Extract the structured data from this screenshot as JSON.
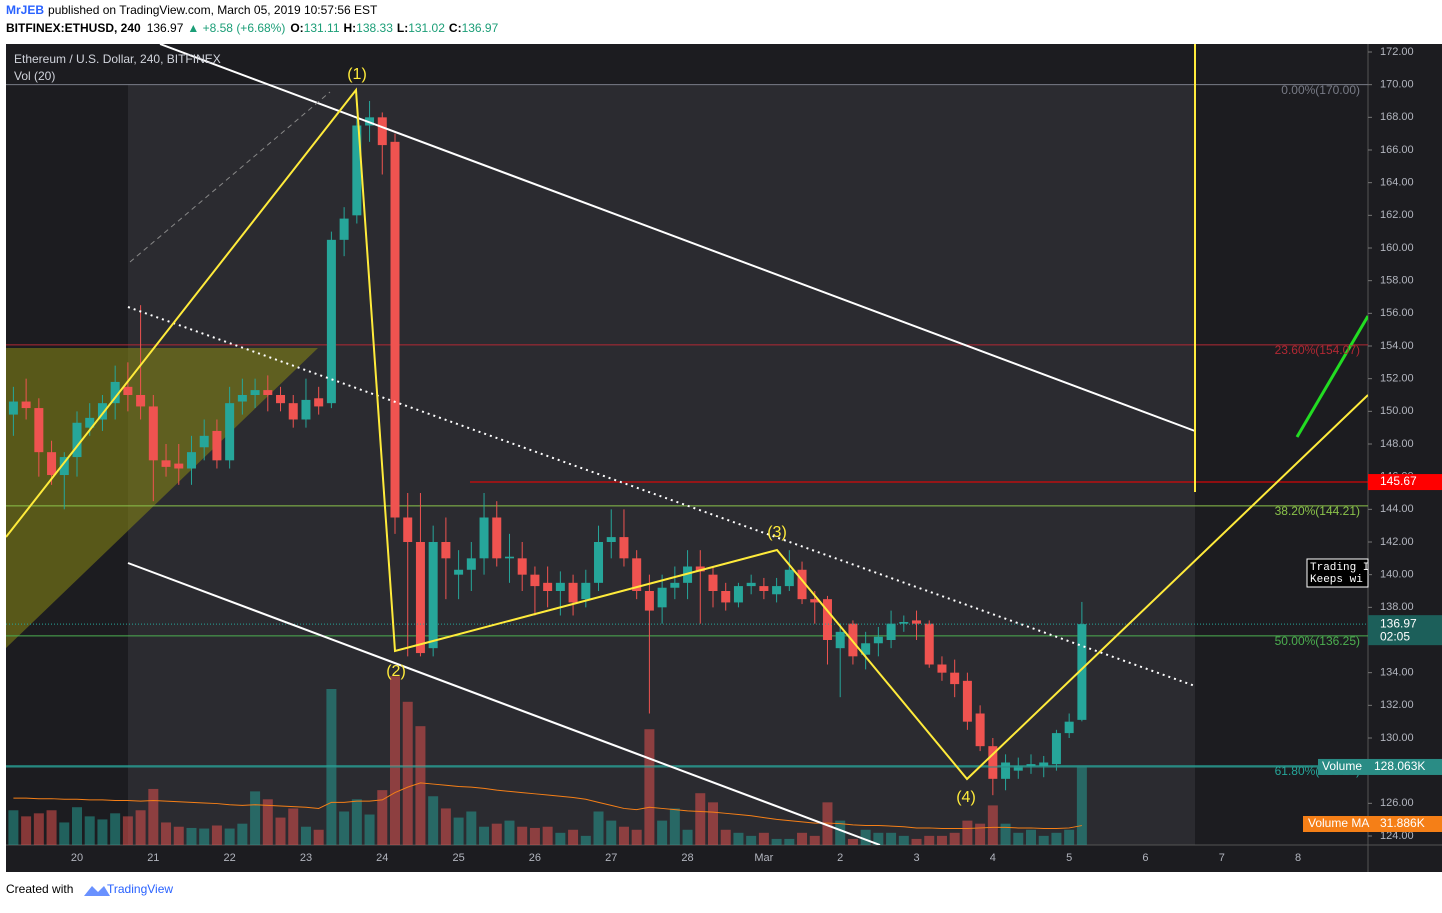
{
  "header": {
    "author": "MrJEB",
    "published": "published on TradingView.com, March 05, 2019 10:57:56 EST",
    "symbol": "BITFINEX:ETHUSD, 240",
    "last": "136.97",
    "change": "▲ +8.58 (+6.68%)",
    "o_label": "O:",
    "o": "131.11",
    "h_label": "H:",
    "h": "138.33",
    "l_label": "L:",
    "l": "131.02",
    "c_label": "C:",
    "c": "136.97"
  },
  "chart_data": {
    "type": "candlestick",
    "title": "Ethereum / U.S. Dollar, 240, BITFINEX",
    "subtitle": "Vol (20)",
    "up_color": "#26a69a",
    "down_color": "#ef5350",
    "categories": [
      null,
      null,
      null,
      null,
      null,
      "20",
      null,
      null,
      null,
      null,
      null,
      "21",
      null,
      null,
      null,
      null,
      null,
      "22",
      null,
      null,
      null,
      null,
      null,
      "23",
      null,
      null,
      null,
      null,
      null,
      "24",
      null,
      null,
      null,
      null,
      null,
      "25",
      null,
      null,
      null,
      null,
      null,
      "26",
      null,
      null,
      null,
      null,
      null,
      "27",
      null,
      null,
      null,
      null,
      null,
      "28",
      null,
      null,
      null,
      null,
      null,
      "Mar",
      null,
      null,
      null,
      null,
      null,
      "2",
      null,
      null,
      null,
      null,
      null,
      "3",
      null,
      null,
      null,
      null,
      null,
      "4",
      null,
      null,
      null,
      null,
      null,
      "5",
      null,
      null,
      null,
      null,
      null,
      "6",
      null,
      null,
      null,
      null,
      null,
      "7",
      null,
      null,
      null,
      null,
      null,
      "8"
    ],
    "open": [
      149.8,
      150.6,
      150.2,
      147.5,
      146.1,
      147.2,
      149,
      149.5,
      150.5,
      151.5,
      151,
      150.3,
      147,
      146.8,
      146.5,
      147.8,
      148.8,
      147,
      150.6,
      151,
      151.3,
      151,
      150.5,
      149.5,
      150.8,
      150.5,
      160.5,
      162,
      167.5,
      168,
      166.5,
      143.5,
      142,
      135.5,
      142,
      140,
      140.3,
      141,
      143.5,
      141,
      141,
      140,
      139.5,
      139,
      139.5,
      138.5,
      139.5,
      142,
      142.3,
      141,
      139,
      138,
      139.2,
      139.5,
      140.5,
      140,
      139,
      138.3,
      139.3,
      139.3,
      138.8,
      139.3,
      140.3,
      138.5,
      138.5,
      135.5,
      137,
      135.1,
      135.8,
      136,
      137,
      137.2,
      137,
      134.5,
      134,
      133.5,
      131.5,
      129.5,
      127.5,
      128,
      128.3,
      128.3,
      128.4,
      130.3,
      131.11,
      null,
      null,
      null,
      null,
      null,
      null,
      null,
      null,
      null,
      null,
      null,
      null,
      null,
      null,
      null,
      null,
      null
    ],
    "high": [
      151.5,
      152,
      150.8,
      148.2,
      147.5,
      150,
      150.5,
      151,
      152.8,
      153,
      156.5,
      151,
      148,
      148,
      148.5,
      149.5,
      149.5,
      151.5,
      152,
      152,
      152.2,
      151.5,
      151,
      152,
      151.5,
      161,
      162.5,
      168,
      169,
      168.3,
      167,
      145,
      145,
      143,
      143.5,
      141.5,
      142,
      145,
      144.5,
      142.5,
      142,
      140.5,
      140.5,
      140.2,
      140,
      140.3,
      143,
      144,
      144,
      141.5,
      140,
      140,
      140.5,
      141.5,
      141.5,
      140.5,
      139.5,
      139.5,
      140,
      139.8,
      139.8,
      141.5,
      140.8,
      139,
      138.7,
      137,
      137.2,
      136.5,
      136.8,
      137.8,
      137.5,
      137.8,
      137.2,
      135,
      134.8,
      134,
      132,
      130,
      129,
      128.8,
      129,
      128.9,
      130.5,
      131.5,
      138.33,
      null,
      null,
      null,
      null,
      null,
      null,
      null,
      null,
      null,
      null,
      null,
      null,
      null,
      null,
      null,
      null,
      null
    ],
    "low": [
      148.5,
      149.5,
      146,
      145.5,
      144,
      146,
      148.5,
      148.8,
      149.5,
      150,
      149.5,
      144.5,
      146,
      145.5,
      145.5,
      147,
      146.5,
      146.5,
      149.8,
      150.2,
      150,
      150,
      149,
      149,
      149.8,
      150.2,
      159.5,
      161.5,
      166.5,
      164.5,
      142.5,
      135,
      135,
      135,
      138.5,
      138.5,
      139,
      140,
      140.5,
      139.5,
      139,
      137.5,
      138,
      137.5,
      137.5,
      138,
      139,
      141,
      140.5,
      138.5,
      131.5,
      137,
      138.5,
      138.5,
      137,
      138,
      137.8,
      138,
      138.8,
      138.5,
      138.3,
      139,
      138.2,
      137,
      134.5,
      132.5,
      134.5,
      134.2,
      135,
      135.5,
      136.5,
      136,
      134.3,
      133.5,
      132.5,
      130.5,
      129.2,
      126.5,
      126.8,
      127.5,
      127.8,
      127.6,
      128,
      130,
      131.02,
      null,
      null,
      null,
      null,
      null,
      null,
      null,
      null,
      null,
      null,
      null,
      null,
      null,
      null,
      null,
      null,
      null
    ],
    "close": [
      150.6,
      150.2,
      147.5,
      146.1,
      147.2,
      149.3,
      149.6,
      150.5,
      151.8,
      151,
      150.3,
      147,
      146.6,
      146.5,
      147.5,
      148.5,
      147,
      150.5,
      151,
      151.3,
      151,
      150.5,
      149.5,
      150.7,
      150.3,
      160.5,
      161.8,
      167.5,
      168,
      166.3,
      143.5,
      142,
      135.2,
      142,
      141,
      140.3,
      141,
      143.5,
      141,
      141.1,
      140,
      139.3,
      139,
      139.5,
      138.3,
      139.5,
      142,
      142.3,
      141,
      139,
      137.8,
      139.2,
      139.5,
      140.5,
      140.2,
      139,
      138.3,
      139.3,
      139.5,
      139,
      139.3,
      140.3,
      138.5,
      138.3,
      136,
      136.5,
      135,
      135.8,
      136.2,
      137,
      137.1,
      137,
      134.5,
      134,
      133.3,
      131,
      129.5,
      127.5,
      128.5,
      128.3,
      128.4,
      128.5,
      130.3,
      131,
      136.97,
      null,
      null,
      null,
      null,
      null,
      null,
      null,
      null,
      null,
      null,
      null,
      null,
      null,
      null,
      null,
      null,
      null
    ],
    "volume": [
      57,
      47,
      52,
      57,
      37,
      62,
      47,
      42,
      52,
      47,
      57,
      92,
      37,
      30,
      28,
      27,
      32,
      27,
      35,
      88,
      75,
      45,
      60,
      30,
      25,
      256,
      55,
      75,
      50,
      90,
      277,
      235,
      195,
      80,
      60,
      45,
      55,
      30,
      35,
      40,
      30,
      28,
      30,
      20,
      25,
      15,
      55,
      40,
      30,
      25,
      190,
      40,
      60,
      25,
      85,
      70,
      25,
      20,
      15,
      20,
      10,
      10,
      20,
      15,
      70,
      40,
      10,
      25,
      20,
      20,
      15,
      10,
      15,
      15,
      20,
      40,
      35,
      65,
      35,
      20,
      25,
      15,
      20,
      25,
      128.063,
      null,
      null,
      null,
      null,
      null,
      null,
      null,
      null,
      null,
      null,
      null,
      null,
      null,
      null,
      null,
      null,
      null
    ],
    "volume_ma": [
      77,
      77,
      76,
      76,
      75,
      75,
      74,
      74,
      73,
      73,
      72,
      73,
      72,
      71,
      70,
      69,
      68,
      66,
      65,
      66,
      65,
      64,
      63,
      62,
      60,
      70,
      70,
      72,
      72,
      74,
      86,
      95,
      102,
      100,
      98,
      96,
      95,
      93,
      90,
      88,
      86,
      84,
      82,
      80,
      78,
      75,
      70,
      65,
      60,
      58,
      62,
      60,
      58,
      56,
      55,
      54,
      52,
      50,
      48,
      45,
      42,
      40,
      38,
      36,
      36,
      35,
      33,
      32,
      32,
      31,
      30,
      28,
      28,
      27,
      27,
      27,
      28,
      29,
      29,
      28,
      28,
      27,
      27,
      28,
      31.886,
      null,
      null,
      null,
      null,
      null,
      null,
      null,
      null,
      null,
      null,
      null,
      null,
      null,
      null,
      null,
      null,
      null
    ],
    "volume_ma_color": "#f57f17",
    "ylim": [
      124,
      172
    ],
    "yticks": [
      {
        "value": 124,
        "label": "124.00"
      },
      {
        "value": 126,
        "label": "126.00"
      },
      {
        "value": 128,
        "label": "128.00"
      },
      {
        "value": 130,
        "label": "130.00"
      },
      {
        "value": 132,
        "label": "132.00"
      },
      {
        "value": 134,
        "label": "134.00"
      },
      {
        "value": 136,
        "label": "136.00"
      },
      {
        "value": 138,
        "label": "138.00"
      },
      {
        "value": 140,
        "label": "140.00"
      },
      {
        "value": 142,
        "label": "142.00"
      },
      {
        "value": 144,
        "label": "144.00"
      },
      {
        "value": 146,
        "label": "146.00"
      },
      {
        "value": 148,
        "label": "148.00"
      },
      {
        "value": 150,
        "label": "150.00"
      },
      {
        "value": 152,
        "label": "152.00"
      },
      {
        "value": 154,
        "label": "154.00"
      },
      {
        "value": 156,
        "label": "156.00"
      },
      {
        "value": 158,
        "label": "158.00"
      },
      {
        "value": 160,
        "label": "160.00"
      },
      {
        "value": 162,
        "label": "162.00"
      },
      {
        "value": 164,
        "label": "164.00"
      },
      {
        "value": 166,
        "label": "166.00"
      },
      {
        "value": 168,
        "label": "168.00"
      },
      {
        "value": 170,
        "label": "170.00"
      },
      {
        "value": 172,
        "label": "172.00"
      }
    ],
    "fib_levels": [
      {
        "value": 170,
        "label": "0.00%(170.00)",
        "color": "#787b86"
      },
      {
        "value": 154.07,
        "label": "23.60%(154.07)",
        "color": "#b22833"
      },
      {
        "value": 144.21,
        "label": "38.20%(144.21)",
        "color": "#8bc34a"
      },
      {
        "value": 136.25,
        "label": "50.00%(136.25)",
        "color": "#4caf50"
      },
      {
        "value": 128.29,
        "label": "61.80%(128.29)",
        "color": "#26a69a"
      }
    ],
    "price_line": {
      "value": 145.67,
      "label": "145.67",
      "color": "#ff0000"
    },
    "last_price": {
      "value": 136.97,
      "label": "136.97",
      "countdown": "02:05",
      "color": "#1c5f5a"
    },
    "volume_last": {
      "name": "Volume",
      "value": 128.063,
      "label": "128.063K",
      "color": "#2a8c85"
    },
    "volume_ma_last": {
      "name": "Volume MA",
      "value": 31.886,
      "label": "31.886K",
      "color": "#f57f17"
    },
    "waves": [
      "(1)",
      "(2)",
      "(3)",
      "(4)"
    ],
    "note": [
      "Trading I",
      "Keeps wi"
    ]
  },
  "footer": {
    "created": "Created with",
    "brand": "TradingView"
  }
}
